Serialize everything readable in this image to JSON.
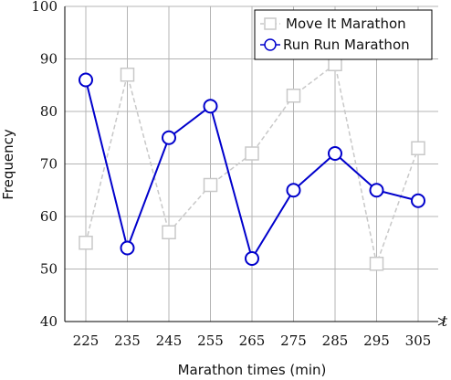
{
  "chart_data": {
    "type": "line",
    "x": [
      225,
      235,
      245,
      255,
      265,
      275,
      285,
      295,
      305
    ],
    "xlabel": "Marathon times (min)",
    "ylabel": "Frequency",
    "x_axis_end_label": "t",
    "ylim": [
      40,
      100
    ],
    "yticks": [
      40,
      50,
      60,
      70,
      80,
      90,
      100
    ],
    "grid": true,
    "legend_position": "top-right",
    "series": [
      {
        "name": "Move It Marathon",
        "values": [
          55,
          87,
          57,
          66,
          72,
          83,
          89,
          51,
          73
        ],
        "color": "#c8c8c8",
        "line_style": "dashed",
        "marker": "square"
      },
      {
        "name": "Run Run Marathon",
        "values": [
          86,
          54,
          75,
          81,
          52,
          65,
          72,
          65,
          63
        ],
        "color": "#0000cc",
        "line_style": "solid",
        "marker": "circle"
      }
    ]
  }
}
